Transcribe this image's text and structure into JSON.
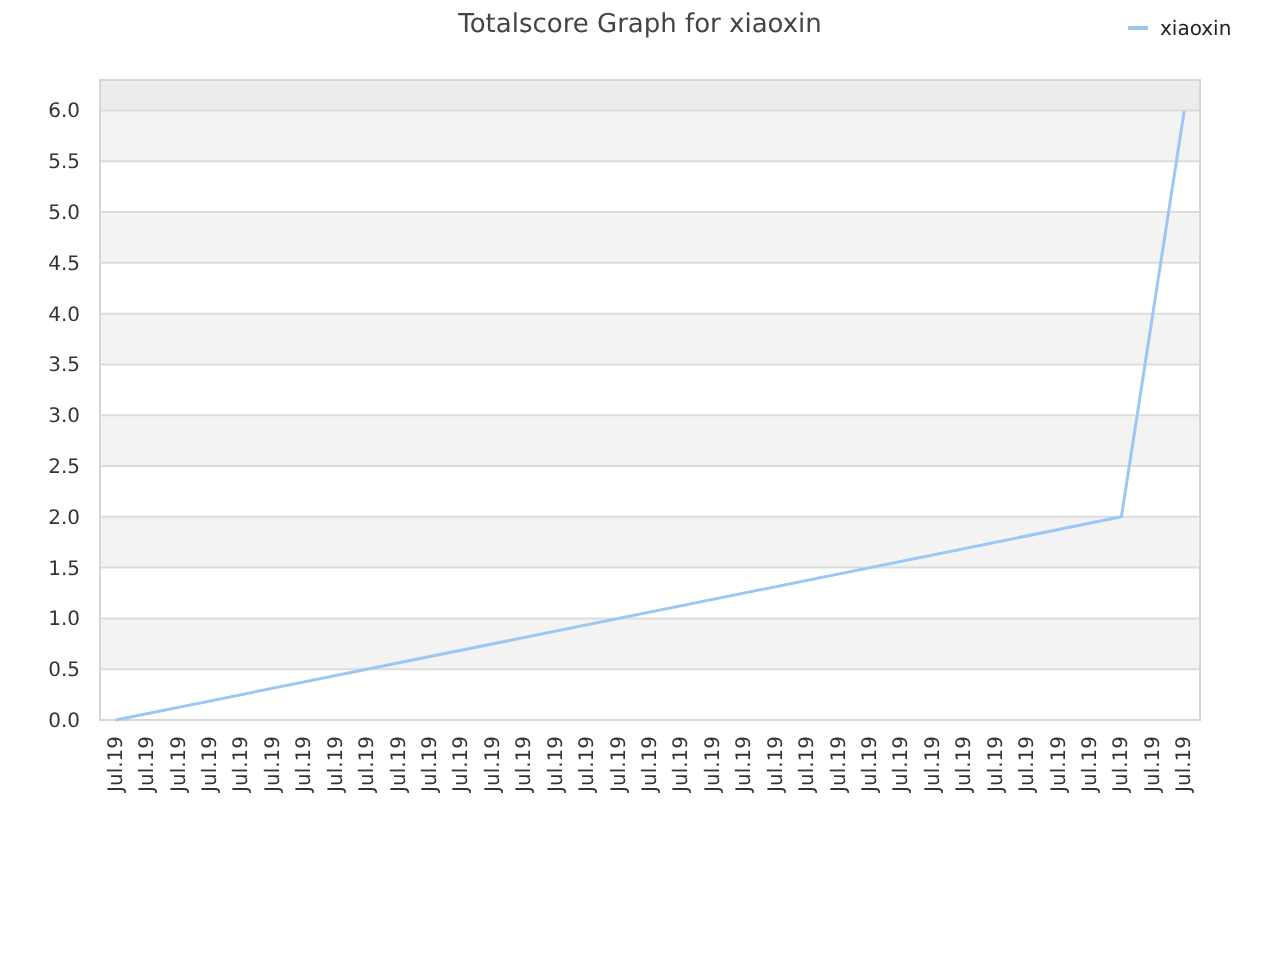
{
  "chart_data": {
    "type": "line",
    "title": "Totalscore Graph for xiaoxin",
    "categories": [
      "Jul.19",
      "Jul.19",
      "Jul.19",
      "Jul.19",
      "Jul.19",
      "Jul.19",
      "Jul.19",
      "Jul.19",
      "Jul.19",
      "Jul.19",
      "Jul.19",
      "Jul.19",
      "Jul.19",
      "Jul.19",
      "Jul.19",
      "Jul.19",
      "Jul.19",
      "Jul.19",
      "Jul.19",
      "Jul.19",
      "Jul.19",
      "Jul.19",
      "Jul.19",
      "Jul.19",
      "Jul.19",
      "Jul.19",
      "Jul.19",
      "Jul.19",
      "Jul.19",
      "Jul.19",
      "Jul.19",
      "Jul.19",
      "Jul.19",
      "Jul.19",
      "Jul.19"
    ],
    "series": [
      {
        "name": "xiaoxin",
        "color": "#99c8f5",
        "values": [
          0,
          null,
          null,
          null,
          null,
          null,
          null,
          null,
          null,
          null,
          null,
          null,
          null,
          null,
          null,
          null,
          null,
          null,
          null,
          null,
          null,
          null,
          null,
          null,
          null,
          null,
          null,
          null,
          null,
          null,
          null,
          null,
          2,
          null,
          6
        ]
      }
    ],
    "ylim": [
      0,
      6.3
    ],
    "yticks": [
      {
        "value": 0,
        "label": "0.0"
      },
      0.5,
      {
        "value": 1,
        "label": "1.0"
      },
      1.5,
      {
        "value": 2,
        "label": "2.0"
      },
      2.5,
      {
        "value": 3,
        "label": "3.0"
      },
      3.5,
      {
        "value": 4,
        "label": "4.0"
      },
      4.5,
      {
        "value": 5,
        "label": "5.0"
      },
      5.5,
      {
        "value": 6,
        "label": "6.0"
      }
    ],
    "grid": true,
    "legend": "top right",
    "marker": "none",
    "line_style": "solid"
  }
}
